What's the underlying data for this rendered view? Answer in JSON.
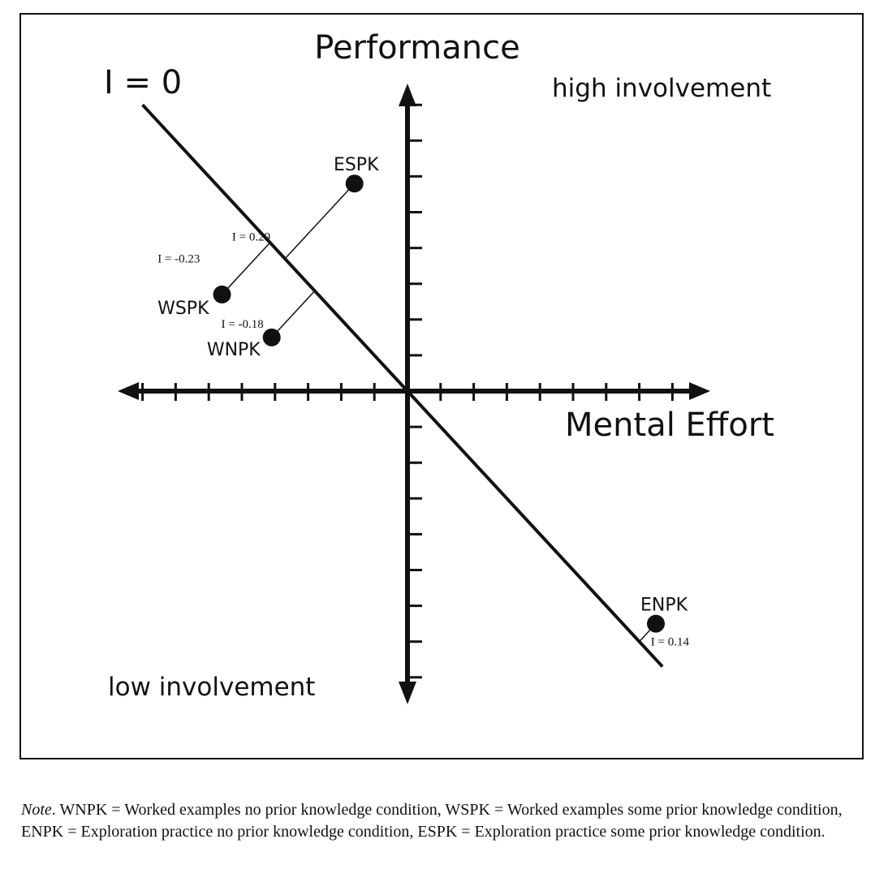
{
  "chart_data": {
    "type": "scatter",
    "title": "Performance",
    "xlabel": "Mental Effort",
    "ylabel": "Performance",
    "xlim": [
      -8.5,
      8.5
    ],
    "ylim": [
      -8.5,
      8.5
    ],
    "x_ticks": [
      -8,
      -7,
      -6,
      -5,
      -4,
      -3,
      -2,
      -1,
      1,
      2,
      3,
      4,
      5,
      6,
      7,
      8
    ],
    "y_ticks": [
      -8,
      -7,
      -6,
      -5,
      -4,
      -3,
      -2,
      -1,
      1,
      2,
      3,
      4,
      5,
      6,
      7,
      8
    ],
    "grid": false,
    "reference_line": {
      "label": "I = 0",
      "slope": -1,
      "intercept": 0
    },
    "regions": {
      "upper_right": "high involvement",
      "lower_left": "low involvement"
    },
    "points": [
      {
        "label": "ESPK",
        "x": -1.6,
        "y": 5.8,
        "involvement_label": "I = 0.29"
      },
      {
        "label": "WSPK",
        "x": -5.6,
        "y": 2.7,
        "involvement_label": "I = -0.23"
      },
      {
        "label": "WNPK",
        "x": -4.1,
        "y": 1.5,
        "involvement_label": "I = -0.18"
      },
      {
        "label": "ENPK",
        "x": 7.5,
        "y": -6.5,
        "involvement_label": "I = 0.14"
      }
    ]
  },
  "note": {
    "label": "Note",
    "text": ". WNPK = Worked examples no prior knowledge condition, WSPK = Worked examples some prior knowledge condition, ENPK = Exploration practice no prior knowledge condition, ESPK = Exploration practice some prior knowledge condition."
  }
}
